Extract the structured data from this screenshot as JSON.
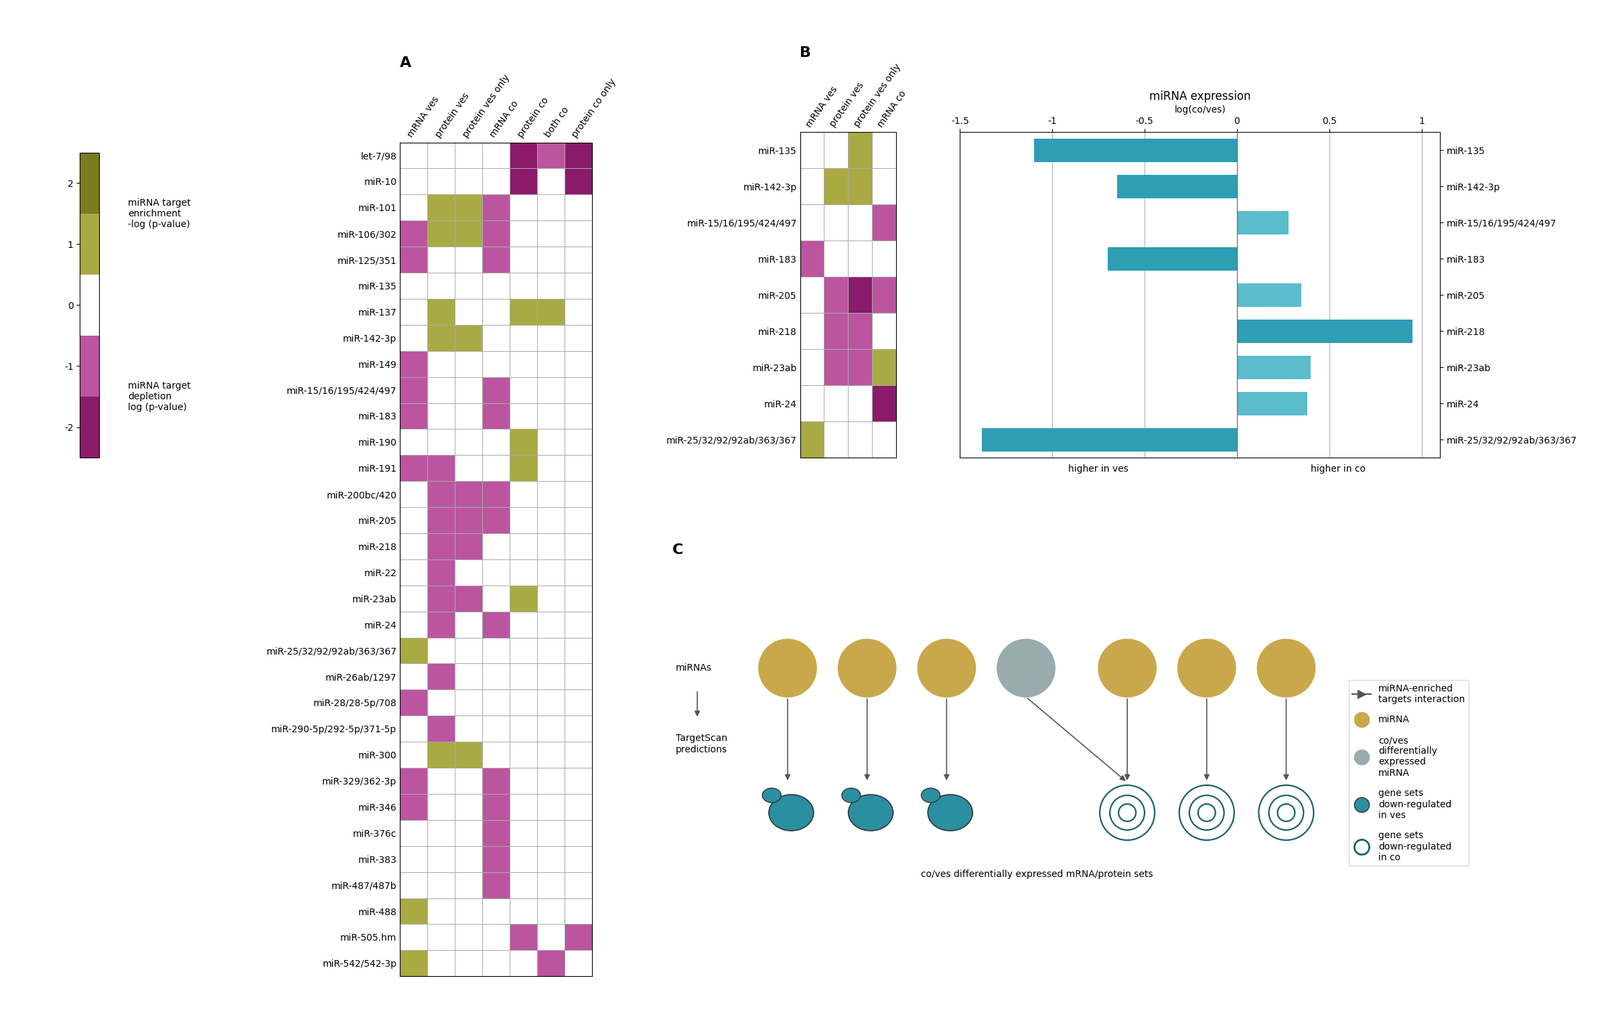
{
  "chart_data": [
    {
      "type": "heatmap",
      "title": "A",
      "categories": [
        "mRNA ves",
        "protein ves",
        "protein ves only",
        "mRNA co",
        "protein co",
        "both co",
        "protein co only"
      ],
      "rows": [
        "let-7/98",
        "miR-10",
        "miR-101",
        "miR-106/302",
        "miR-125/351",
        "miR-135",
        "miR-137",
        "miR-142-3p",
        "miR-149",
        "miR-15/16/195/424/497",
        "miR-183",
        "miR-190",
        "miR-191",
        "miR-200bc/420",
        "miR-205",
        "miR-218",
        "miR-22",
        "miR-23ab",
        "miR-24",
        "miR-25/32/92/92ab/363/367",
        "miR-26ab/1297",
        "miR-28/28-5p/708",
        "miR-290-5p/292-5p/371-5p",
        "miR-300",
        "miR-329/362-3p",
        "miR-346",
        "miR-376c",
        "miR-383",
        "miR-487/487b",
        "miR-488",
        "miR-505.hm",
        "miR-542/542-3p"
      ],
      "cells": [
        [
          0,
          0,
          0,
          0,
          -2,
          -1,
          -2
        ],
        [
          0,
          0,
          0,
          0,
          -2,
          0,
          -2
        ],
        [
          0,
          1,
          1,
          -1,
          0,
          0,
          0
        ],
        [
          -1,
          1,
          1,
          -1,
          0,
          0,
          0
        ],
        [
          -1,
          0,
          0,
          -1,
          0,
          0,
          0
        ],
        [
          0,
          0,
          0,
          0,
          0,
          0,
          0
        ],
        [
          0,
          1,
          0,
          0,
          1,
          1,
          0
        ],
        [
          0,
          1,
          1,
          0,
          0,
          0,
          0
        ],
        [
          -1,
          0,
          0,
          0,
          0,
          0,
          0
        ],
        [
          -1,
          0,
          0,
          -1,
          0,
          0,
          0
        ],
        [
          -1,
          0,
          0,
          -1,
          0,
          0,
          0
        ],
        [
          0,
          0,
          0,
          0,
          1,
          0,
          0
        ],
        [
          -1,
          -1,
          0,
          0,
          1,
          0,
          0
        ],
        [
          0,
          -1,
          -1,
          -1,
          0,
          0,
          0
        ],
        [
          0,
          -1,
          -1,
          -1,
          0,
          0,
          0
        ],
        [
          0,
          -1,
          -1,
          0,
          0,
          0,
          0
        ],
        [
          0,
          -1,
          0,
          0,
          0,
          0,
          0
        ],
        [
          0,
          -1,
          -1,
          0,
          1,
          0,
          0
        ],
        [
          0,
          -1,
          0,
          -1,
          0,
          0,
          0
        ],
        [
          1,
          0,
          0,
          0,
          0,
          0,
          0
        ],
        [
          0,
          -1,
          0,
          0,
          0,
          0,
          0
        ],
        [
          -1,
          0,
          0,
          0,
          0,
          0,
          0
        ],
        [
          0,
          -1,
          0,
          0,
          0,
          0,
          0
        ],
        [
          0,
          1,
          1,
          0,
          0,
          0,
          0
        ],
        [
          -1,
          0,
          0,
          -1,
          0,
          0,
          0
        ],
        [
          -1,
          0,
          0,
          -1,
          0,
          0,
          0
        ],
        [
          0,
          0,
          0,
          -1,
          0,
          0,
          0
        ],
        [
          0,
          0,
          0,
          -1,
          0,
          0,
          0
        ],
        [
          0,
          0,
          0,
          -1,
          0,
          0,
          0
        ],
        [
          1,
          0,
          0,
          0,
          0,
          0,
          0
        ],
        [
          0,
          0,
          0,
          0,
          -1,
          0,
          -1
        ],
        [
          1,
          0,
          0,
          0,
          0,
          -1,
          0
        ]
      ],
      "colors": [
        "#8b1a6b",
        "#bb55a0",
        "#ffffff",
        "#aaaa44",
        "#7c7c1e"
      ],
      "clim": [
        -2.5,
        2.5
      ],
      "cticks": [
        -2,
        -1,
        0,
        1,
        2
      ],
      "annotations": [
        "miRNA target\nenrichment\n-log (p-value)",
        "miRNA target\ndepletion\nlog (p-value)"
      ]
    },
    {
      "type": "heatmap",
      "title": "B",
      "categories": [
        "mRNA ves",
        "protein ves",
        "protein ves only",
        "mRNA co"
      ],
      "rows": [
        "miR-135",
        "miR-142-3p",
        "miR-15/16/195/424/497",
        "miR-183",
        "miR-205",
        "miR-218",
        "miR-23ab",
        "miR-24",
        "miR-25/32/92/92ab/363/367"
      ],
      "cells": [
        [
          0,
          0,
          1,
          0
        ],
        [
          0,
          1,
          1,
          0
        ],
        [
          0,
          0,
          0,
          -1
        ],
        [
          -1,
          0,
          0,
          0
        ],
        [
          0,
          -1,
          -2,
          -1
        ],
        [
          0,
          -1,
          -1,
          0
        ],
        [
          0,
          -1,
          -1,
          1
        ],
        [
          0,
          0,
          0,
          -2
        ],
        [
          1,
          0,
          0,
          0
        ]
      ],
      "colors": [
        "#8b1a6b",
        "#bb55a0",
        "#ffffff",
        "#aaaa44",
        "#7c7c1e"
      ],
      "clim": [
        -2.5,
        2.5
      ]
    },
    {
      "type": "bar",
      "orientation": "horizontal",
      "title": "miRNA expression",
      "xlabel": "log(co/ves)",
      "categories": [
        "miR-135",
        "miR-142-3p",
        "miR-15/16/195/424/497",
        "miR-183",
        "miR-205",
        "miR-218",
        "miR-23ab",
        "miR-24",
        "miR-25/32/92/92ab/363/367"
      ],
      "values": [
        -1.1,
        -0.65,
        0.28,
        -0.7,
        0.35,
        0.95,
        0.4,
        0.38,
        -1.38
      ],
      "colors": [
        "#2e9eb5",
        "#2e9eb5",
        "#5bbccc",
        "#2e9eb5",
        "#5bbccc",
        "#2e9eb5",
        "#5bbccc",
        "#5bbccc",
        "#2e9eb5"
      ],
      "xlim": [
        -1.5,
        1.1
      ],
      "xticks": [
        -1.5,
        -1,
        -0.5,
        0,
        0.5,
        1
      ],
      "grid": true,
      "annotations": [
        "higher in ves",
        "higher in co"
      ]
    },
    {
      "type": "diagram",
      "title": "C",
      "annotations": [
        "miRNAs",
        "TargetScan\npredictions",
        "co/ves differentially expressed mRNA/protein sets"
      ],
      "series": [
        {
          "name": "miRNA-enriched\ntargets interaction",
          "marker": "arrow",
          "color": "#555555"
        },
        {
          "name": "miRNA",
          "marker": "circle",
          "color": "#c8a84b"
        },
        {
          "name": "co/ves\ndifferentially\nexpressed\nmiRNA",
          "marker": "circle",
          "color": "#9aabae"
        },
        {
          "name": "gene sets\ndown-regulated\nin ves",
          "marker": "ellipse",
          "color": "#2a8fa0"
        },
        {
          "name": "gene sets\ndown-regulated\nin co",
          "marker": "rings",
          "color": "#1a6070"
        }
      ],
      "legend": "center left"
    }
  ]
}
